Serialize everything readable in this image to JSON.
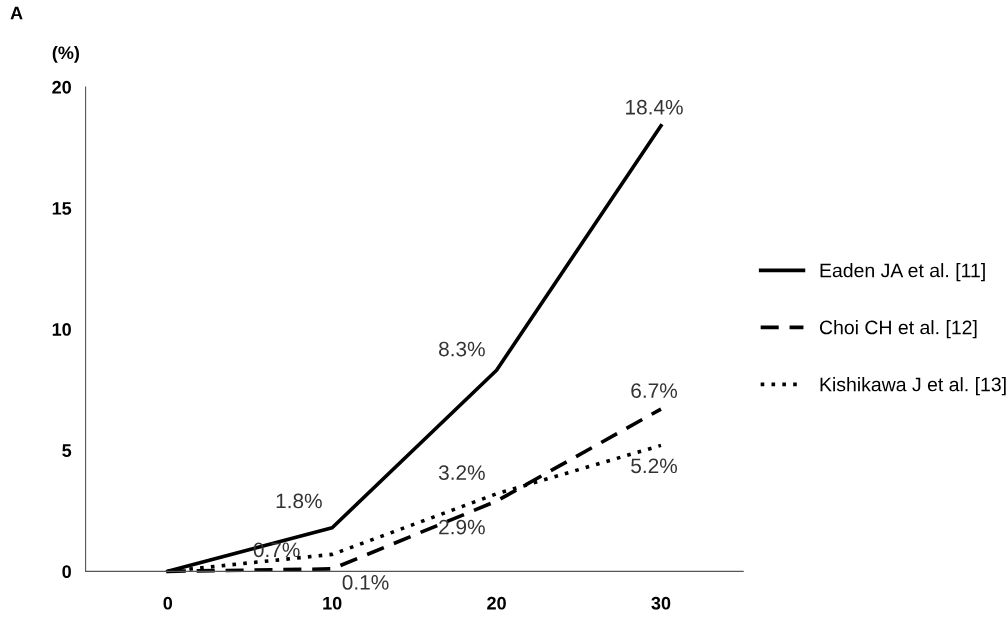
{
  "chart_data": {
    "type": "line",
    "ylabel": "(%)",
    "annotations": [
      "A"
    ],
    "categories": [
      "0",
      "10",
      "20",
      "30"
    ],
    "series": [
      {
        "name": "Eaden JA et al. [11]",
        "color": "#000000",
        "line_style": "solid",
        "values": [
          0,
          1.8,
          8.3,
          18.4
        ],
        "value_labels": [
          null,
          "1.8%",
          "8.3%",
          "18.4%"
        ]
      },
      {
        "name": "Choi CH et al. [12]",
        "color": "#000000",
        "line_style": "dashed",
        "values": [
          0,
          0.1,
          2.9,
          6.7
        ],
        "value_labels": [
          null,
          "0.1%",
          "2.9%",
          "6.7%"
        ]
      },
      {
        "name": "Kishikawa J et al. [13]",
        "color": "#000000",
        "line_style": "dotted",
        "values": [
          0,
          0.7,
          3.2,
          5.2
        ],
        "value_labels": [
          null,
          "0.7%",
          "3.2%",
          "5.2%"
        ]
      }
    ],
    "ylim": [
      0,
      20
    ],
    "yticks": [
      0,
      5,
      10,
      15,
      20
    ],
    "grid": false,
    "legend": "right",
    "marker": "none"
  }
}
